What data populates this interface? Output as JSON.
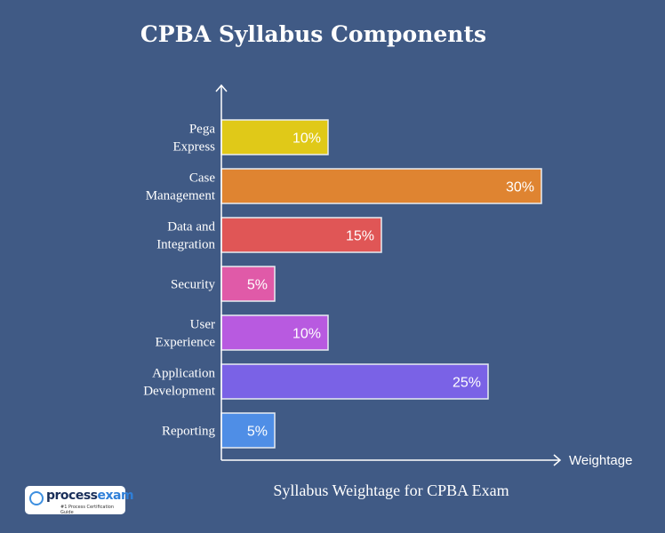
{
  "chart_data": {
    "type": "bar",
    "orientation": "horizontal",
    "title": "CPBA Syllabus Components",
    "xlabel": "Weightage",
    "subtitle": "Syllabus Weightage for CPBA Exam",
    "categories": [
      [
        "Pega",
        "Express"
      ],
      [
        "Case",
        "Management"
      ],
      [
        "Data and",
        "Integration"
      ],
      [
        "Security"
      ],
      [
        "User",
        "Experience"
      ],
      [
        "Application",
        "Development"
      ],
      [
        "Reporting"
      ]
    ],
    "values": [
      10,
      30,
      15,
      5,
      10,
      25,
      5
    ],
    "data_labels": [
      "10%",
      "30%",
      "15%",
      "5%",
      "10%",
      "25%",
      "5%"
    ],
    "colors": [
      "#e0c918",
      "#df8431",
      "#e05656",
      "#e05aa8",
      "#b85ae0",
      "#7a62e6",
      "#4f8ee6"
    ],
    "xlim": [
      0,
      32
    ],
    "grid": false,
    "legend": "none"
  },
  "logo": {
    "name_a": "process",
    "name_b": "exam",
    "tagline": "#1 Process Certification Guide"
  }
}
